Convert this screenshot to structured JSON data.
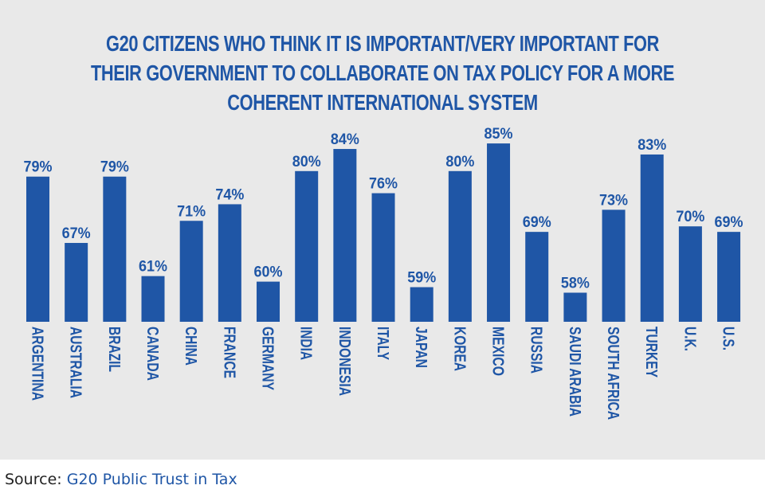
{
  "colors": {
    "bar": "#1f56a6",
    "panel": "#e9e9e9",
    "text": "#1f56a6"
  },
  "title_lines": [
    "G20 CITIZENS WHO THINK IT IS IMPORTANT/VERY IMPORTANT FOR",
    "THEIR GOVERNMENT TO COLLABORATE ON TAX POLICY FOR A MORE",
    "COHERENT INTERNATIONAL SYSTEM"
  ],
  "source": {
    "label": "Source:",
    "text": "G20 Public Trust in Tax"
  },
  "chart_data": {
    "type": "bar",
    "title": "G20 CITIZENS WHO THINK IT IS IMPORTANT/VERY IMPORTANT FOR THEIR GOVERNMENT TO COLLABORATE ON TAX POLICY FOR A MORE COHERENT INTERNATIONAL SYSTEM",
    "categories": [
      "ARGENTINA",
      "AUSTRALIA",
      "BRAZIL",
      "CANADA",
      "CHINA",
      "FRANCE",
      "GERMANY",
      "INDIA",
      "INDONESIA",
      "ITALY",
      "JAPAN",
      "KOREA",
      "MEXICO",
      "RUSSIA",
      "SAUDI ARABIA",
      "SOUTH AFRICA",
      "TURKEY",
      "U.K.",
      "U.S."
    ],
    "values": [
      79,
      67,
      79,
      61,
      71,
      74,
      60,
      80,
      84,
      76,
      59,
      80,
      85,
      69,
      58,
      73,
      83,
      70,
      69
    ],
    "value_labels": [
      "79%",
      "67%",
      "79%",
      "61%",
      "71%",
      "74%",
      "60%",
      "80%",
      "84%",
      "76%",
      "59%",
      "80%",
      "85%",
      "69%",
      "58%",
      "73%",
      "83%",
      "70%",
      "69%"
    ],
    "xlabel": "",
    "ylabel": "",
    "grid": false,
    "legend": "none"
  }
}
